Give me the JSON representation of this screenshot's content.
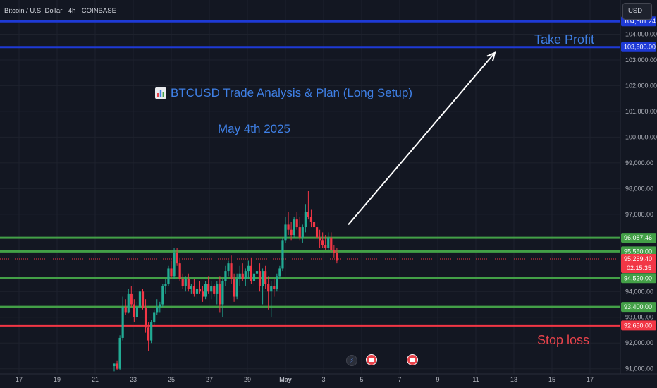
{
  "header": {
    "symbol_title": "Bitcoin / U.S. Dollar · 4h · COINBASE",
    "currency_button": "USD"
  },
  "annotations": {
    "headline": "BTCUSD Trade Analysis & Plan (Long Setup)",
    "headline_icon": "bar-chart-icon",
    "subhead": "May 4th 2025",
    "take_profit_label": "Take Profit",
    "stop_loss_label": "Stop loss"
  },
  "colors": {
    "background": "#131722",
    "up": "#22ab94",
    "down": "#f23645",
    "blue_level": "#1e3ad6",
    "green_level": "#43a047",
    "red_level": "#f23645",
    "annotation_blue": "#3f80e6",
    "arrow": "#ffffff"
  },
  "events": [
    {
      "name": "flash-event-icon",
      "date_index": 0
    },
    {
      "name": "us-flag-event-icon",
      "date_index": 1
    },
    {
      "name": "us-flag-event-icon",
      "date_index": 2
    }
  ],
  "chart_data": {
    "type": "candlestick",
    "title": "Bitcoin / U.S. Dollar · 4h · COINBASE",
    "ylim": [
      90800,
      105000
    ],
    "x_ticks": [
      "17",
      "19",
      "21",
      "23",
      "25",
      "27",
      "29",
      "May",
      "3",
      "5",
      "7",
      "9",
      "11",
      "13",
      "15",
      "17"
    ],
    "y_ticks": [
      "91,000.00",
      "92,000.00",
      "93,000.00",
      "94,000.00",
      "97,000.00",
      "98,000.00",
      "99,000.00",
      "100,000.00",
      "101,000.00",
      "102,000.00",
      "103,000.00",
      "104,000.00"
    ],
    "y_tick_values": [
      91000,
      92000,
      93000,
      94000,
      97000,
      98000,
      99000,
      100000,
      101000,
      102000,
      103000,
      104000
    ],
    "levels": [
      {
        "price": 104501.24,
        "label": "104,501.24",
        "kind": "blue"
      },
      {
        "price": 103500.0,
        "label": "103,500.00",
        "kind": "blue"
      },
      {
        "price": 96087.46,
        "label": "96,087.46",
        "kind": "green"
      },
      {
        "price": 95560.0,
        "label": "95,560.00",
        "kind": "green"
      },
      {
        "price": 94520.0,
        "label": "94,520.00",
        "kind": "green"
      },
      {
        "price": 93400.0,
        "label": "93,400.00",
        "kind": "green"
      },
      {
        "price": 92680.0,
        "label": "92,680.00",
        "kind": "red"
      }
    ],
    "current_price": {
      "price": 95269.4,
      "label": "95,269.40",
      "countdown": "02:15:35"
    },
    "arrow": {
      "from": {
        "day": 4.2,
        "price": 96600
      },
      "to": {
        "day": 12.0,
        "price": 103280
      }
    },
    "x_day_range": [
      16.0,
      18.0
    ],
    "candles": [
      [
        22.0,
        91100,
        91200,
        90900,
        91200
      ],
      [
        22.15,
        91200,
        91300,
        90950,
        91000
      ],
      [
        22.3,
        91000,
        92300,
        90950,
        92200
      ],
      [
        22.45,
        92200,
        93800,
        92100,
        93400
      ],
      [
        22.6,
        93400,
        93700,
        93100,
        93200
      ],
      [
        22.75,
        93200,
        94100,
        93150,
        93900
      ],
      [
        22.9,
        93900,
        94200,
        93400,
        93500
      ],
      [
        23.05,
        93500,
        93700,
        92800,
        93000
      ],
      [
        23.2,
        93000,
        93600,
        92900,
        93400
      ],
      [
        23.35,
        93400,
        94100,
        93300,
        94000
      ],
      [
        23.5,
        94000,
        94100,
        93300,
        93350
      ],
      [
        23.65,
        93350,
        93700,
        92400,
        92600
      ],
      [
        23.8,
        92600,
        92800,
        91700,
        92100
      ],
      [
        23.95,
        92100,
        92900,
        92000,
        92800
      ],
      [
        24.1,
        92800,
        93300,
        92700,
        93200
      ],
      [
        24.25,
        93200,
        93700,
        93100,
        93400
      ],
      [
        24.4,
        93400,
        93600,
        93200,
        93500
      ],
      [
        24.55,
        93500,
        94300,
        93400,
        94200
      ],
      [
        24.7,
        94200,
        94500,
        93900,
        94300
      ],
      [
        24.85,
        94300,
        95000,
        94200,
        94900
      ],
      [
        25.0,
        94900,
        95200,
        94500,
        94600
      ],
      [
        25.15,
        94600,
        95700,
        94500,
        95500
      ],
      [
        25.3,
        95500,
        95700,
        95000,
        95100
      ],
      [
        25.45,
        95100,
        95300,
        94400,
        94500
      ],
      [
        25.6,
        94500,
        94700,
        94100,
        94200
      ],
      [
        25.75,
        94200,
        94600,
        94000,
        94500
      ],
      [
        25.9,
        94500,
        94700,
        94000,
        94100
      ],
      [
        26.05,
        94100,
        94300,
        93900,
        94200
      ],
      [
        26.2,
        94200,
        94500,
        93800,
        93900
      ],
      [
        26.35,
        93900,
        94200,
        93700,
        94100
      ],
      [
        26.5,
        94100,
        94400,
        93900,
        94000
      ],
      [
        26.65,
        94000,
        94200,
        93600,
        93800
      ],
      [
        26.8,
        93800,
        94400,
        93700,
        94300
      ],
      [
        26.95,
        94300,
        94600,
        93900,
        94000
      ],
      [
        27.1,
        94000,
        94400,
        93700,
        94200
      ],
      [
        27.25,
        94200,
        94300,
        93800,
        93900
      ],
      [
        27.4,
        93900,
        94400,
        93500,
        94300
      ],
      [
        27.55,
        94300,
        94600,
        93200,
        93500
      ],
      [
        27.7,
        93500,
        94500,
        93000,
        94400
      ],
      [
        27.85,
        94400,
        95000,
        94200,
        94800
      ],
      [
        28.0,
        94800,
        95200,
        94600,
        95100
      ],
      [
        28.15,
        95100,
        95400,
        94300,
        94500
      ],
      [
        28.3,
        94500,
        94700,
        93600,
        93800
      ],
      [
        28.45,
        93800,
        94700,
        93700,
        94500
      ],
      [
        28.6,
        94500,
        95000,
        94200,
        94700
      ],
      [
        28.75,
        94700,
        95100,
        94400,
        94500
      ],
      [
        28.9,
        94500,
        94900,
        94200,
        94800
      ],
      [
        29.05,
        94800,
        95200,
        94500,
        95000
      ],
      [
        29.2,
        95000,
        95300,
        94300,
        94400
      ],
      [
        29.35,
        94400,
        94900,
        94200,
        94700
      ],
      [
        29.5,
        94700,
        95000,
        94400,
        94800
      ],
      [
        29.65,
        94800,
        95100,
        94000,
        94200
      ],
      [
        29.8,
        94200,
        94900,
        93500,
        94800
      ],
      [
        29.95,
        94800,
        95000,
        94100,
        94300
      ],
      [
        30.1,
        94300,
        94600,
        93300,
        94000
      ],
      [
        30.25,
        94000,
        94400,
        93000,
        94200
      ],
      [
        30.4,
        94200,
        94500,
        93800,
        94100
      ],
      [
        30.55,
        94100,
        94700,
        94000,
        94600
      ],
      [
        30.7,
        94600,
        95000,
        94500,
        94900
      ],
      [
        30.85,
        94900,
        96100,
        94800,
        96000
      ],
      [
        31.0,
        96000,
        96900,
        95900,
        96600
      ],
      [
        31.15,
        96600,
        97100,
        96200,
        96400
      ],
      [
        31.3,
        96400,
        96700,
        96000,
        96200
      ],
      [
        31.45,
        96200,
        96900,
        96100,
        96800
      ],
      [
        31.6,
        96800,
        97100,
        96400,
        96500
      ],
      [
        31.75,
        96500,
        96900,
        96000,
        96100
      ],
      [
        31.9,
        96100,
        96600,
        95900,
        96500
      ],
      [
        32.05,
        96500,
        97400,
        96300,
        97100
      ],
      [
        32.2,
        97100,
        97900,
        96800,
        96900
      ],
      [
        32.35,
        96900,
        97200,
        96500,
        96700
      ],
      [
        32.5,
        96700,
        97100,
        96300,
        96500
      ],
      [
        32.65,
        96500,
        96700,
        95900,
        96100
      ],
      [
        32.8,
        96100,
        96400,
        95700,
        96000
      ],
      [
        32.95,
        96000,
        96300,
        95700,
        95800
      ],
      [
        33.1,
        95800,
        96200,
        95600,
        95700
      ],
      [
        33.25,
        95700,
        96300,
        95600,
        96100
      ],
      [
        33.4,
        96100,
        96300,
        95500,
        95600
      ],
      [
        33.55,
        95600,
        95800,
        95300,
        95500
      ],
      [
        33.7,
        95500,
        95700,
        95100,
        95200
      ]
    ]
  }
}
